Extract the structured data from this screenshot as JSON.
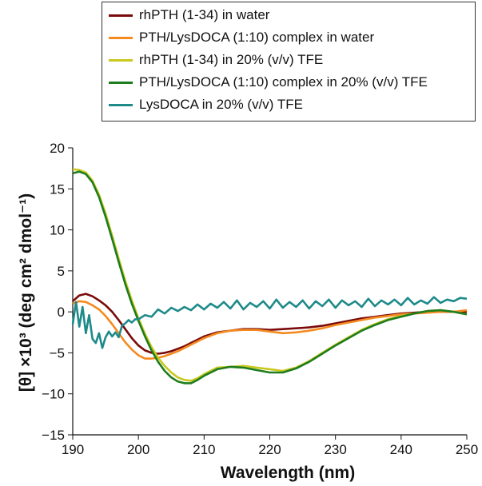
{
  "chart_data": {
    "type": "line",
    "title": "",
    "xlabel": "Wavelength (nm)",
    "ylabel": "[θ] ×10³ (deg cm² dmol⁻¹)",
    "xlim": [
      190,
      250
    ],
    "ylim": [
      -15,
      20
    ],
    "x_ticks": [
      "190",
      "200",
      "210",
      "220",
      "230",
      "240",
      "250"
    ],
    "y_ticks": [
      "20",
      "15",
      "10",
      "5",
      "0",
      "−5",
      "−10",
      "−15"
    ],
    "grid": false,
    "legend_position": "top",
    "series": [
      {
        "name": "rhPTH (1-34) in water",
        "color": "#7b0a0a",
        "x": [
          190,
          191,
          192,
          193,
          194,
          195,
          196,
          197,
          198,
          199,
          200,
          201,
          202,
          203,
          204,
          205,
          206,
          207,
          208,
          210,
          212,
          214,
          216,
          218,
          220,
          222,
          224,
          226,
          228,
          230,
          232,
          234,
          236,
          238,
          240,
          242,
          244,
          246,
          248,
          250
        ],
        "y": [
          1.3,
          2.0,
          2.2,
          1.9,
          1.4,
          0.8,
          0.0,
          -1.0,
          -2.1,
          -3.2,
          -4.1,
          -4.7,
          -5.0,
          -5.1,
          -5.0,
          -4.8,
          -4.5,
          -4.2,
          -3.8,
          -3.0,
          -2.5,
          -2.3,
          -2.1,
          -2.1,
          -2.2,
          -2.1,
          -2.0,
          -1.9,
          -1.7,
          -1.4,
          -1.1,
          -0.8,
          -0.6,
          -0.4,
          -0.2,
          -0.1,
          0.0,
          0.0,
          0.0,
          0.0
        ]
      },
      {
        "name": "PTH/LysDOCA (1:10) complex in water",
        "color": "#f58a1f",
        "x": [
          190,
          191,
          192,
          193,
          194,
          195,
          196,
          197,
          198,
          199,
          200,
          201,
          202,
          203,
          204,
          205,
          206,
          207,
          208,
          210,
          212,
          214,
          216,
          218,
          220,
          222,
          224,
          226,
          228,
          230,
          232,
          234,
          236,
          238,
          240,
          242,
          244,
          246,
          248,
          250
        ],
        "y": [
          1.0,
          1.3,
          1.2,
          0.8,
          0.3,
          -0.5,
          -1.5,
          -2.6,
          -3.7,
          -4.6,
          -5.3,
          -5.7,
          -5.7,
          -5.6,
          -5.4,
          -5.1,
          -4.8,
          -4.4,
          -4.0,
          -3.2,
          -2.6,
          -2.3,
          -2.2,
          -2.2,
          -2.4,
          -2.6,
          -2.5,
          -2.3,
          -2.0,
          -1.6,
          -1.3,
          -1.0,
          -0.7,
          -0.5,
          -0.3,
          -0.2,
          -0.1,
          0.0,
          0.0,
          0.2
        ]
      },
      {
        "name": "rhPTH (1-34) in 20% (v/v) TFE",
        "color": "#c8c81e",
        "x": [
          190,
          191,
          192,
          193,
          194,
          195,
          196,
          197,
          198,
          199,
          200,
          201,
          202,
          203,
          204,
          205,
          206,
          207,
          208,
          209,
          210,
          212,
          214,
          216,
          218,
          220,
          222,
          224,
          226,
          228,
          230,
          232,
          234,
          236,
          238,
          240,
          242,
          244,
          246,
          248,
          250
        ],
        "y": [
          17.4,
          17.3,
          17.0,
          16.0,
          14.3,
          12.0,
          9.3,
          6.5,
          3.8,
          1.4,
          -0.8,
          -2.7,
          -4.3,
          -5.6,
          -6.6,
          -7.4,
          -8.0,
          -8.3,
          -8.4,
          -8.1,
          -7.6,
          -6.8,
          -6.7,
          -6.6,
          -6.8,
          -7.0,
          -7.2,
          -6.8,
          -6.0,
          -5.0,
          -4.0,
          -3.1,
          -2.2,
          -1.5,
          -0.9,
          -0.5,
          -0.2,
          0.1,
          0.2,
          0.0,
          -0.3
        ]
      },
      {
        "name": "PTH/LysDOCA (1:10) complex in 20% (v/v) TFE",
        "color": "#1e7d1e",
        "x": [
          190,
          191,
          192,
          193,
          194,
          195,
          196,
          197,
          198,
          199,
          200,
          201,
          202,
          203,
          204,
          205,
          206,
          207,
          208,
          209,
          210,
          212,
          214,
          216,
          218,
          220,
          222,
          224,
          226,
          228,
          230,
          232,
          234,
          236,
          238,
          240,
          242,
          244,
          246,
          248,
          250
        ],
        "y": [
          16.9,
          17.1,
          16.8,
          15.8,
          14.0,
          11.6,
          8.9,
          6.1,
          3.4,
          1.0,
          -1.1,
          -3.0,
          -4.7,
          -6.1,
          -7.2,
          -8.0,
          -8.5,
          -8.7,
          -8.7,
          -8.3,
          -7.8,
          -7.0,
          -6.7,
          -6.8,
          -7.1,
          -7.4,
          -7.4,
          -6.9,
          -6.1,
          -5.1,
          -4.1,
          -3.2,
          -2.3,
          -1.6,
          -1.0,
          -0.6,
          -0.2,
          0.1,
          0.2,
          0.0,
          -0.3
        ]
      },
      {
        "name": "LysDOCA in 20% (v/v) TFE",
        "color": "#1f8a8a",
        "x": [
          190,
          190.5,
          191,
          191.5,
          192,
          192.5,
          193,
          193.5,
          194,
          194.5,
          195,
          195.5,
          196,
          196.5,
          197,
          197.5,
          198,
          198.5,
          199,
          199.5,
          200,
          201,
          202,
          203,
          204,
          205,
          206,
          207,
          208,
          209,
          210,
          211,
          212,
          213,
          214,
          215,
          216,
          217,
          218,
          219,
          220,
          221,
          222,
          223,
          224,
          225,
          226,
          227,
          228,
          229,
          230,
          231,
          232,
          233,
          234,
          235,
          236,
          237,
          238,
          239,
          240,
          241,
          242,
          243,
          244,
          245,
          246,
          247,
          248,
          249,
          250
        ],
        "y": [
          -1.5,
          1.2,
          -1.8,
          0.6,
          -2.6,
          -0.4,
          -3.3,
          -3.8,
          -2.6,
          -4.4,
          -3.1,
          -2.4,
          -3.0,
          -2.5,
          -3.1,
          -1.7,
          -1.4,
          -1.0,
          -1.3,
          -0.9,
          -0.9,
          -0.4,
          -0.6,
          0.3,
          -0.2,
          0.5,
          0.1,
          0.6,
          0.2,
          0.9,
          0.3,
          1.0,
          0.5,
          1.2,
          0.4,
          1.4,
          0.3,
          1.1,
          0.6,
          1.3,
          0.4,
          1.5,
          0.5,
          1.2,
          0.6,
          1.4,
          0.4,
          1.3,
          0.7,
          1.5,
          0.5,
          1.4,
          0.8,
          1.3,
          0.6,
          1.6,
          0.7,
          1.4,
          0.9,
          1.5,
          0.8,
          1.7,
          0.9,
          1.4,
          1.0,
          1.8,
          1.1,
          1.5,
          1.3,
          1.7,
          1.6
        ]
      }
    ]
  }
}
